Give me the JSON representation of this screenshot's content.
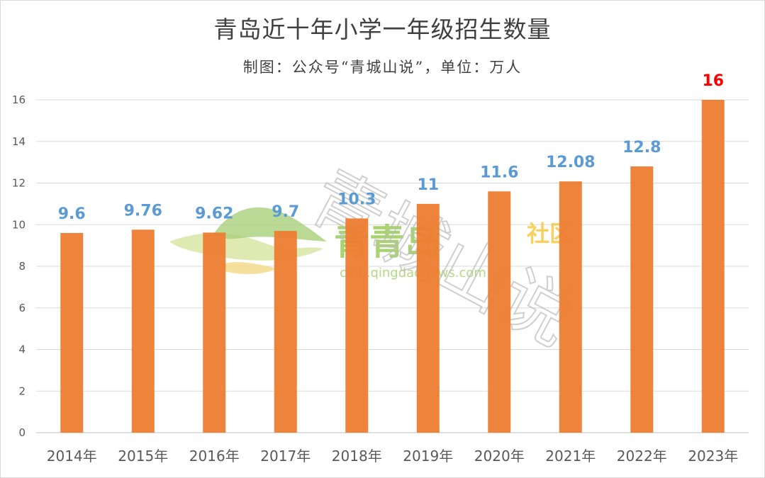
{
  "chart_data": {
    "type": "bar",
    "title": "青岛近十年小学一年级招生数量",
    "subtitle": "制图：公众号“青城山说”，单位：万人",
    "categories": [
      "2014年",
      "2015年",
      "2016年",
      "2017年",
      "2018年",
      "2019年",
      "2020年",
      "2021年",
      "2022年",
      "2023年"
    ],
    "values": [
      9.6,
      9.76,
      9.62,
      9.7,
      10.3,
      11,
      11.6,
      12.08,
      12.8,
      16
    ],
    "data_labels": [
      "9.6",
      "9.76",
      "9.62",
      "9.7",
      "10.3",
      "11",
      "11.6",
      "12.08",
      "12.8",
      "16"
    ],
    "ylim": [
      0,
      16
    ],
    "yticks": [
      0,
      2,
      4,
      6,
      8,
      10,
      12,
      14,
      16
    ],
    "grid": true,
    "xlabel": "",
    "ylabel": "",
    "legend": "none"
  },
  "colors": {
    "bar": "#ED7D31",
    "label": "#5B9BD5",
    "highlight_label": "#FF0000",
    "grid": "#D9D9D9",
    "axis": "#BFBFBF"
  },
  "watermark": {
    "brand": "青青岛",
    "suffix": "社区",
    "url": "club.qingdaonews.com",
    "diagonal_text": "青城山说"
  }
}
